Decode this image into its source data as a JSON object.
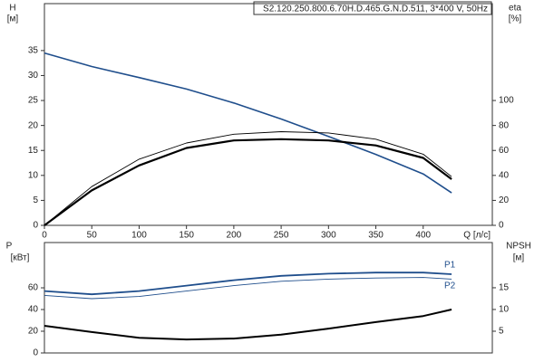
{
  "chart_data": [
    {
      "type": "line",
      "title": "S2.120.250.800.6.70H.D.465.G.N.D.511, 3*400 V, 50Hz",
      "y_label": "H",
      "y_unit": "[м]",
      "y2_label": "eta",
      "y2_unit": "[%]",
      "x_label": "Q [л/с]",
      "x": [
        0,
        50,
        100,
        150,
        200,
        250,
        300,
        350,
        400,
        430
      ],
      "xlim": [
        0,
        473
      ],
      "xticks": [
        0,
        50,
        100,
        150,
        200,
        250,
        300,
        350,
        400
      ],
      "ylim": [
        0,
        44.4
      ],
      "yticks": [
        0,
        5,
        10,
        15,
        20,
        25,
        30,
        35
      ],
      "y2lim": [
        0,
        177.6
      ],
      "y2ticks": [
        0,
        20,
        40,
        60,
        80,
        100
      ],
      "series": [
        {
          "color": "#1f4e8c",
          "line_width": 1.6,
          "values": [
            34.5,
            31.8,
            29.6,
            27.3,
            24.5,
            21.3,
            17.8,
            14.2,
            10.3,
            6.5
          ]
        },
        {
          "color": "#000000",
          "line_width": 0.9,
          "axis": "y2",
          "values": [
            0,
            31,
            53,
            66,
            73,
            75,
            74,
            69,
            57,
            39
          ]
        },
        {
          "color": "#000000",
          "line_width": 2.2,
          "axis": "y2",
          "values": [
            0,
            28,
            48,
            62,
            68,
            69,
            68,
            64,
            54,
            37
          ]
        }
      ]
    },
    {
      "type": "line",
      "y_label": "P",
      "y_unit": "[кВт]",
      "y2_label": "NPSH",
      "y2_unit": "[м]",
      "x": [
        0,
        50,
        100,
        150,
        200,
        250,
        300,
        350,
        400,
        430
      ],
      "xlim": [
        0,
        473
      ],
      "ylim": [
        0,
        101.7
      ],
      "yticks": [
        0,
        20,
        40,
        60
      ],
      "y2lim": [
        0,
        25.4
      ],
      "y2ticks": [
        5,
        10,
        15
      ],
      "series": [
        {
          "name": "P1",
          "color": "#1f4e8c",
          "line_width": 1.8,
          "values": [
            57,
            54,
            57,
            62,
            67,
            71,
            73,
            74,
            74,
            72.5
          ]
        },
        {
          "name": "P2",
          "color": "#1f4e8c",
          "line_width": 0.9,
          "values": [
            53,
            50,
            52,
            57,
            62,
            66,
            68,
            69,
            69.5,
            68
          ]
        },
        {
          "color": "#000000",
          "line_width": 2,
          "axis": "y2",
          "values": [
            6.25,
            4.8,
            3.5,
            3.1,
            3.3,
            4.2,
            5.6,
            7.1,
            8.5,
            10
          ]
        }
      ]
    }
  ]
}
